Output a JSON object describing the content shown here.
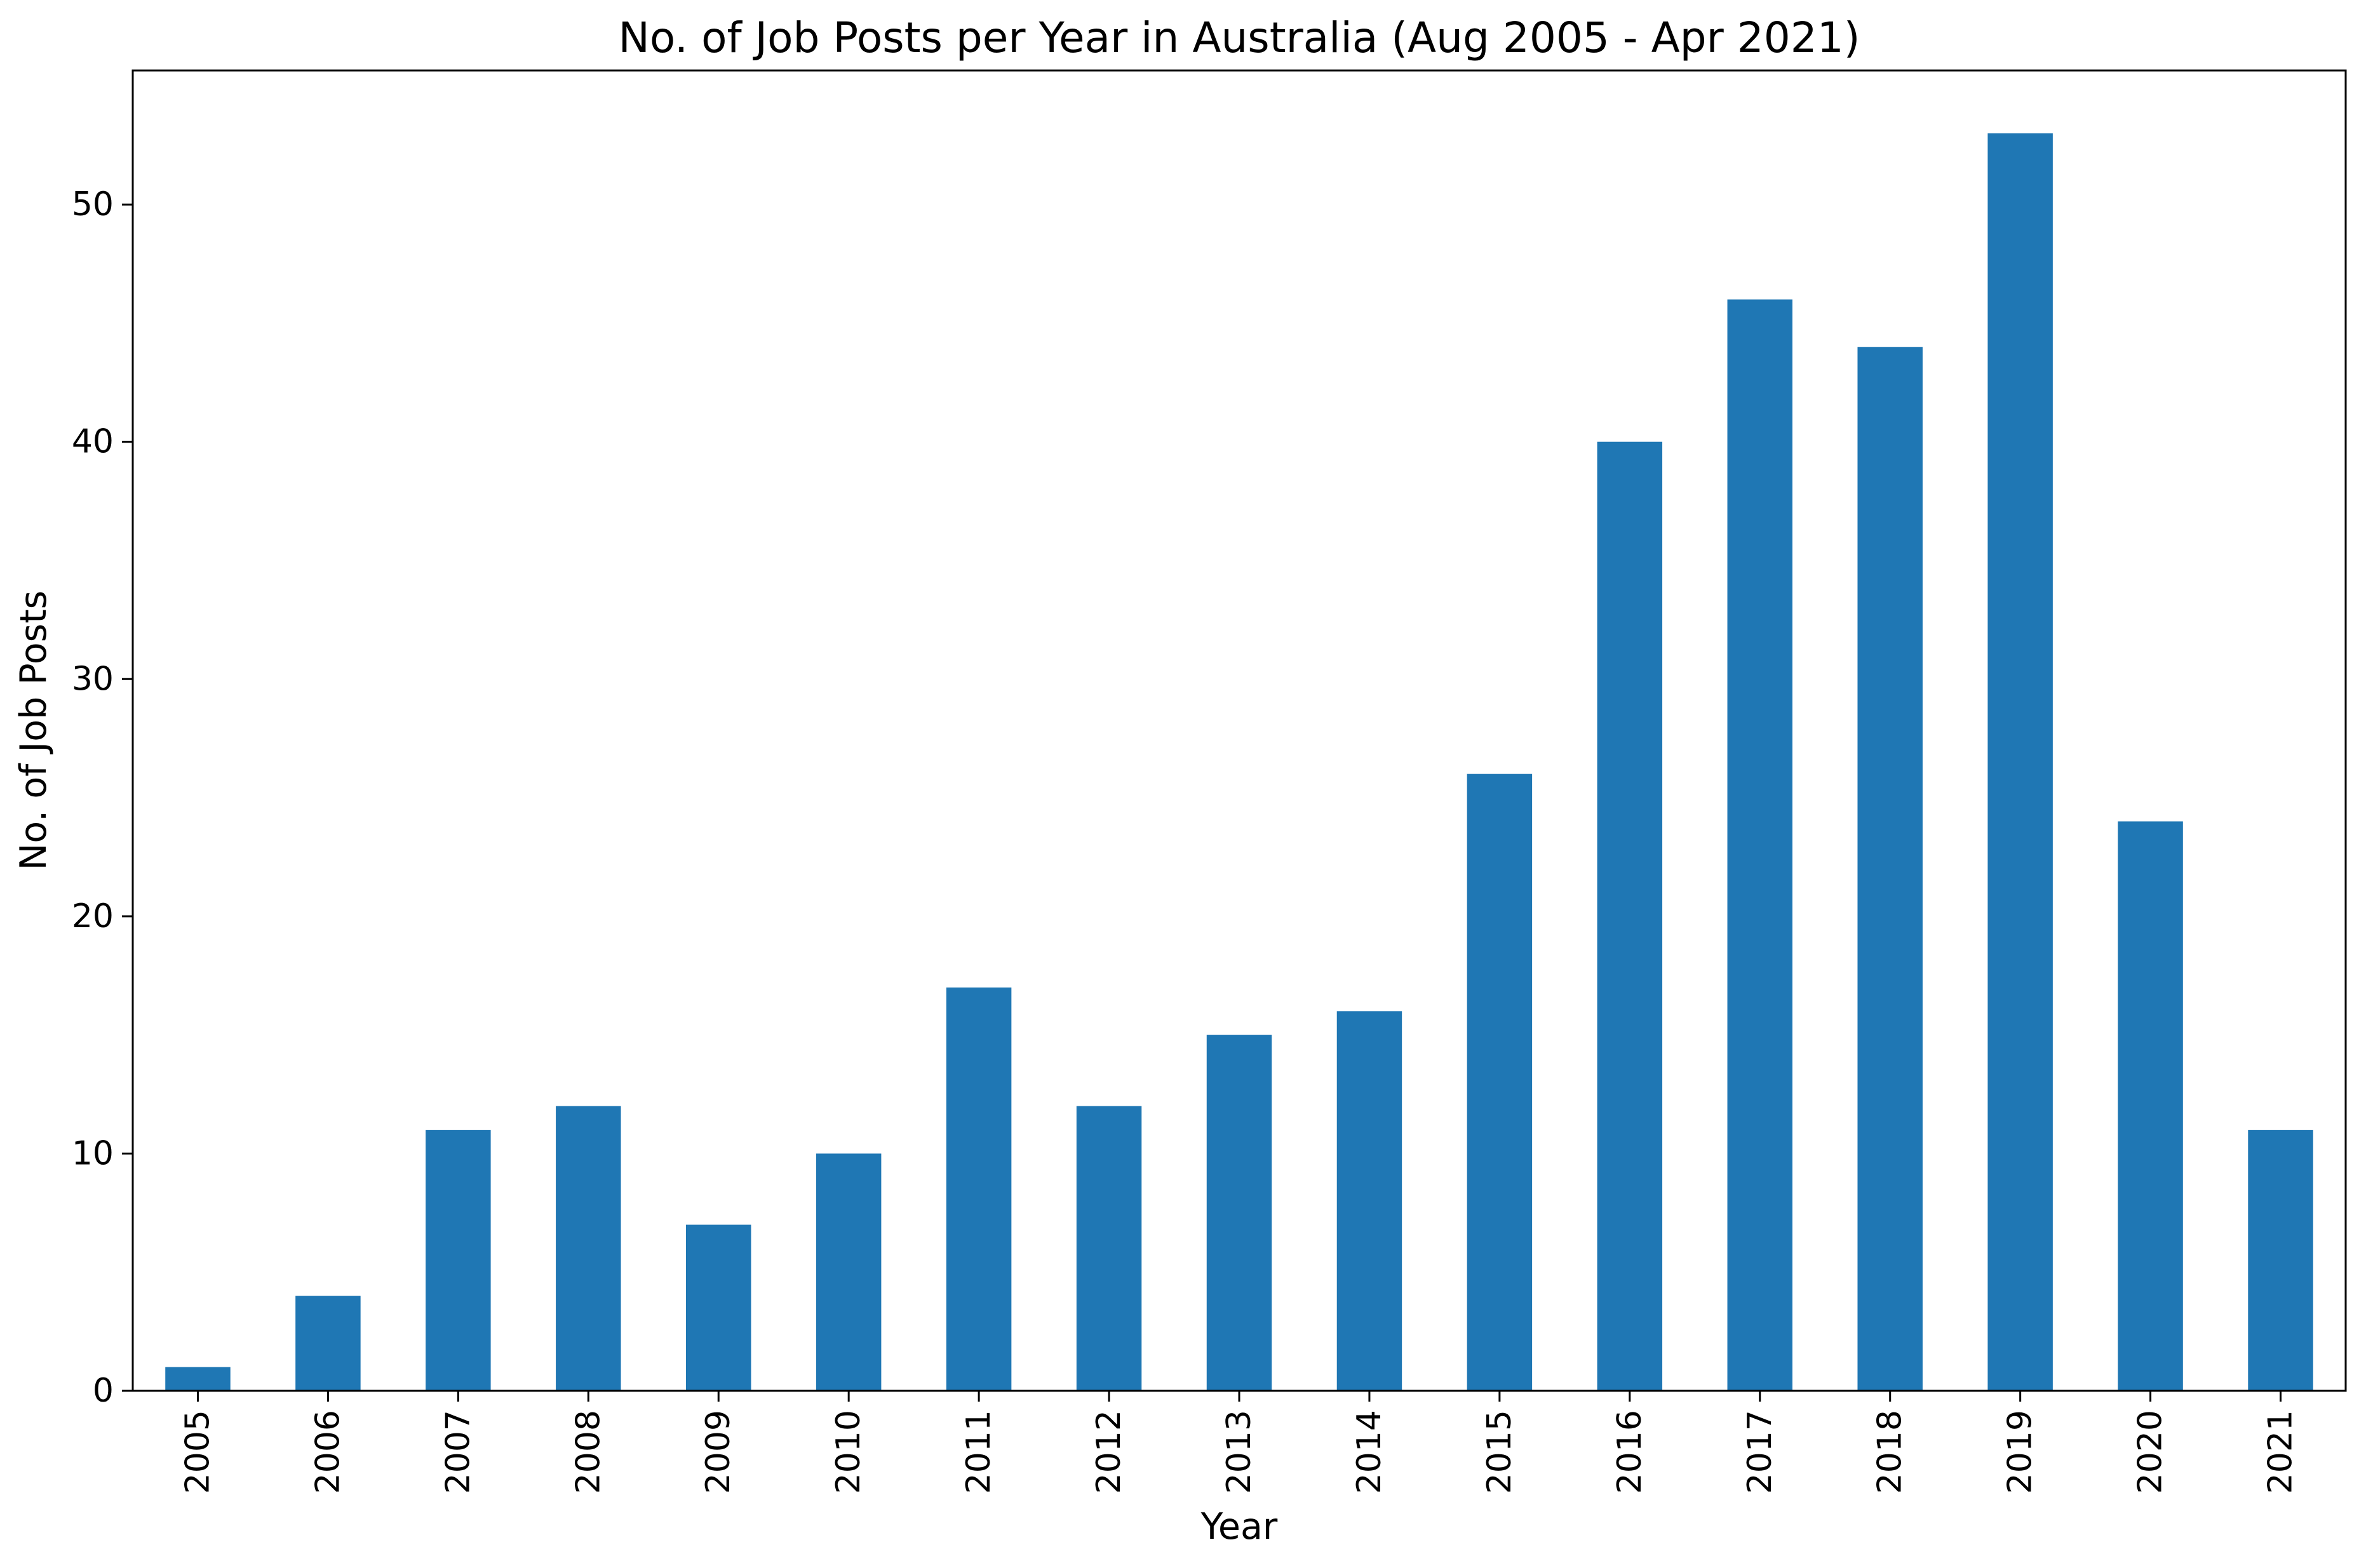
{
  "chart_data": {
    "type": "bar",
    "title": "No. of Job Posts per Year in Australia (Aug 2005 - Apr 2021)",
    "xlabel": "Year",
    "ylabel": "No. of Job Posts",
    "categories": [
      "2005",
      "2006",
      "2007",
      "2008",
      "2009",
      "2010",
      "2011",
      "2012",
      "2013",
      "2014",
      "2015",
      "2016",
      "2017",
      "2018",
      "2019",
      "2020",
      "2021"
    ],
    "values": [
      1,
      4,
      11,
      12,
      7,
      10,
      17,
      12,
      15,
      16,
      26,
      40,
      46,
      44,
      53,
      24,
      11
    ],
    "ylim": [
      0,
      55.65
    ],
    "yticks": [
      0,
      10,
      20,
      30,
      40,
      50
    ],
    "bar_color": "#1f77b4",
    "grid": false,
    "legend": "none",
    "xtick_rotation": "vertical"
  }
}
